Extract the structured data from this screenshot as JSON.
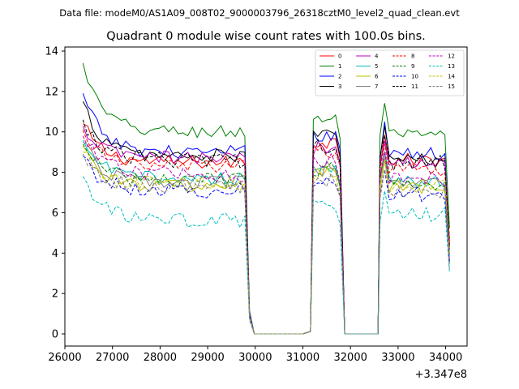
{
  "chart_data": {
    "type": "line",
    "suptitle": "Data file: modeM0/AS1A09_008T02_9000003796_26318cztM0_level2_quad_clean.evt",
    "title": "Quadrant 0 module wise count rates with 100.0s bins.",
    "xlabel": "",
    "ylabel": "",
    "x_offset_label": "+3.347e8",
    "xlim": [
      26000,
      34450
    ],
    "ylim": [
      -0.6,
      14.2
    ],
    "x_ticks": [
      26000,
      27000,
      28000,
      29000,
      30000,
      31000,
      32000,
      33000,
      34000
    ],
    "y_ticks": [
      0,
      2,
      4,
      6,
      8,
      10,
      12,
      14
    ],
    "legend_position": "top-right",
    "segments": [
      {
        "start": 26380,
        "end": 29780,
        "n": 35
      },
      {
        "start": 31220,
        "end": 31780,
        "n": 7
      },
      {
        "start": 32620,
        "end": 34080,
        "n": 16
      }
    ],
    "gap_times": [
      29880,
      29980,
      30100,
      31000,
      31160,
      31880,
      31980,
      32500,
      32580,
      34120
    ],
    "series": [
      {
        "name": "0",
        "color": "#ff0000",
        "dash": "solid",
        "levels": [
          10.4,
          8.5,
          9.5,
          8.6
        ]
      },
      {
        "name": "1",
        "color": "#008000",
        "dash": "solid",
        "levels": [
          13.4,
          10.0,
          10.7,
          9.8
        ]
      },
      {
        "name": "2",
        "color": "#0000ff",
        "dash": "solid",
        "levels": [
          11.9,
          9.0,
          9.9,
          8.9
        ]
      },
      {
        "name": "3",
        "color": "#000000",
        "dash": "solid",
        "levels": [
          11.5,
          8.8,
          9.8,
          8.6
        ]
      },
      {
        "name": "4",
        "color": "#bf00bf",
        "dash": "solid",
        "levels": [
          10.3,
          8.7,
          9.2,
          8.5
        ]
      },
      {
        "name": "5",
        "color": "#00bfbf",
        "dash": "solid",
        "levels": [
          9.6,
          7.7,
          8.3,
          7.6
        ]
      },
      {
        "name": "6",
        "color": "#bfbf00",
        "dash": "solid",
        "levels": [
          9.3,
          7.3,
          8.0,
          7.2
        ]
      },
      {
        "name": "7",
        "color": "#808080",
        "dash": "solid",
        "levels": [
          9.5,
          7.5,
          8.2,
          7.4
        ]
      },
      {
        "name": "8",
        "color": "#ff0000",
        "dash": "dashed",
        "levels": [
          10.1,
          8.3,
          9.0,
          8.2
        ]
      },
      {
        "name": "9",
        "color": "#008000",
        "dash": "dashed",
        "levels": [
          9.4,
          7.6,
          8.2,
          7.5
        ]
      },
      {
        "name": "10",
        "color": "#0000ff",
        "dash": "dashed",
        "levels": [
          8.8,
          7.1,
          7.5,
          6.9
        ]
      },
      {
        "name": "11",
        "color": "#000000",
        "dash": "dashed",
        "levels": [
          10.6,
          8.6,
          9.3,
          8.5
        ]
      },
      {
        "name": "12",
        "color": "#bf00bf",
        "dash": "dashed",
        "levels": [
          9.8,
          7.9,
          8.6,
          7.7
        ]
      },
      {
        "name": "13",
        "color": "#00bfbf",
        "dash": "dashed",
        "levels": [
          7.8,
          5.6,
          6.3,
          5.9
        ]
      },
      {
        "name": "14",
        "color": "#bfbf00",
        "dash": "dashed",
        "levels": [
          9.0,
          7.4,
          8.0,
          7.3
        ]
      },
      {
        "name": "15",
        "color": "#808080",
        "dash": "dashed",
        "levels": [
          8.9,
          7.3,
          7.6,
          7.0
        ]
      }
    ]
  }
}
